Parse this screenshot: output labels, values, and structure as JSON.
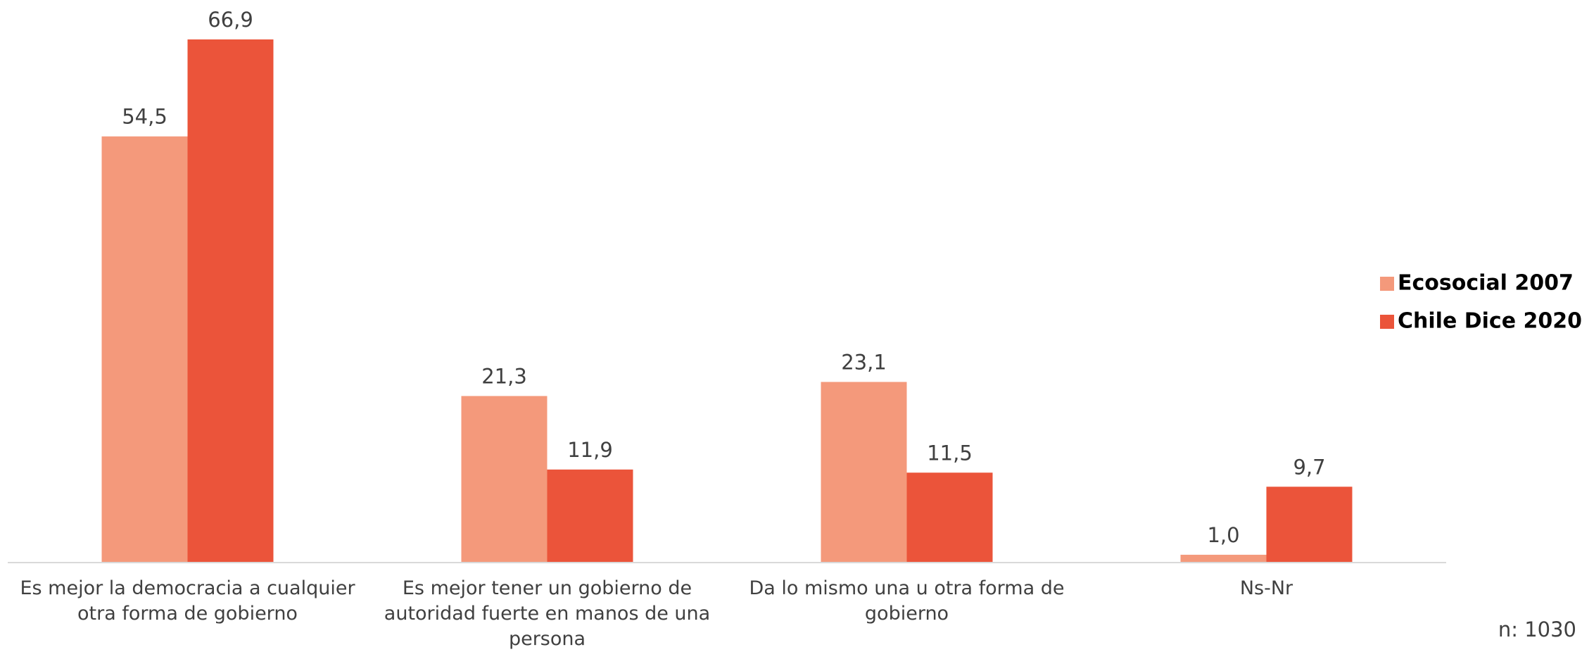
{
  "chart_data": {
    "type": "bar",
    "categories": [
      "Es mejor la democracia a cualquier otra forma de gobierno",
      "Es mejor tener un gobierno de autoridad fuerte en manos de una persona",
      "Da lo mismo una u otra forma de gobierno",
      "Ns-Nr"
    ],
    "series": [
      {
        "name": "Ecosocial 2007",
        "color": "#f4997b",
        "values": [
          54.5,
          21.3,
          23.1,
          1.0
        ],
        "value_labels": [
          "54,5",
          "21,3",
          "23,1",
          "1,0"
        ]
      },
      {
        "name": "Chile Dice 2020",
        "color": "#eb543a",
        "values": [
          66.9,
          11.9,
          11.5,
          9.7
        ],
        "value_labels": [
          "66,9",
          "11,9",
          "11,5",
          "9,7"
        ]
      }
    ],
    "legend": "right",
    "note": "n: 1030"
  }
}
